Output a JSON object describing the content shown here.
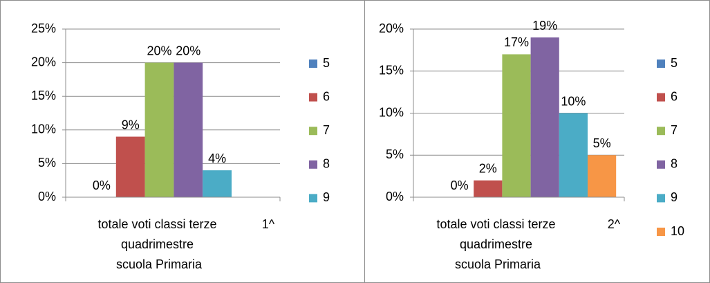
{
  "chart_data": [
    {
      "type": "bar",
      "categories": [
        "totale voti classi terze quadrimestre scuola Primaria"
      ],
      "annotation": "1^",
      "ylim": [
        0,
        25
      ],
      "yticks": [
        {
          "value": 0,
          "label": "0%"
        },
        {
          "value": 5,
          "label": "5%"
        },
        {
          "value": 10,
          "label": "10%"
        },
        {
          "value": 15,
          "label": "15%"
        },
        {
          "value": 20,
          "label": "20%"
        },
        {
          "value": 25,
          "label": "25%"
        }
      ],
      "grid": true,
      "legend": "right",
      "series": [
        {
          "name": "5",
          "color": "#4f81bd",
          "values": [
            0
          ],
          "value_labels": [
            "0%"
          ]
        },
        {
          "name": "6",
          "color": "#c0504d",
          "values": [
            9
          ],
          "value_labels": [
            "9%"
          ]
        },
        {
          "name": "7",
          "color": "#9bbb59",
          "values": [
            20
          ],
          "value_labels": [
            "20%"
          ]
        },
        {
          "name": "8",
          "color": "#8064a2",
          "values": [
            20
          ],
          "value_labels": [
            "20%"
          ]
        },
        {
          "name": "9",
          "color": "#4bacc6",
          "values": [
            4
          ],
          "value_labels": [
            "4%"
          ]
        }
      ]
    },
    {
      "type": "bar",
      "categories": [
        "totale voti classi terze quadrimestre scuola Primaria"
      ],
      "annotation": "2^",
      "ylim": [
        0,
        20
      ],
      "yticks": [
        {
          "value": 0,
          "label": "0%"
        },
        {
          "value": 5,
          "label": "5%"
        },
        {
          "value": 10,
          "label": "10%"
        },
        {
          "value": 15,
          "label": "15%"
        },
        {
          "value": 20,
          "label": "20%"
        }
      ],
      "grid": true,
      "legend": "right",
      "series": [
        {
          "name": "5",
          "color": "#4f81bd",
          "values": [
            0
          ],
          "value_labels": [
            "0%"
          ]
        },
        {
          "name": "6",
          "color": "#c0504d",
          "values": [
            2
          ],
          "value_labels": [
            "2%"
          ]
        },
        {
          "name": "7",
          "color": "#9bbb59",
          "values": [
            17
          ],
          "value_labels": [
            "17%"
          ]
        },
        {
          "name": "8",
          "color": "#8064a2",
          "values": [
            19
          ],
          "value_labels": [
            "19%"
          ]
        },
        {
          "name": "9",
          "color": "#4bacc6",
          "values": [
            10
          ],
          "value_labels": [
            "10%"
          ]
        },
        {
          "name": "10",
          "color": "#f79646",
          "values": [
            5
          ],
          "value_labels": [
            "5%"
          ]
        }
      ]
    }
  ]
}
